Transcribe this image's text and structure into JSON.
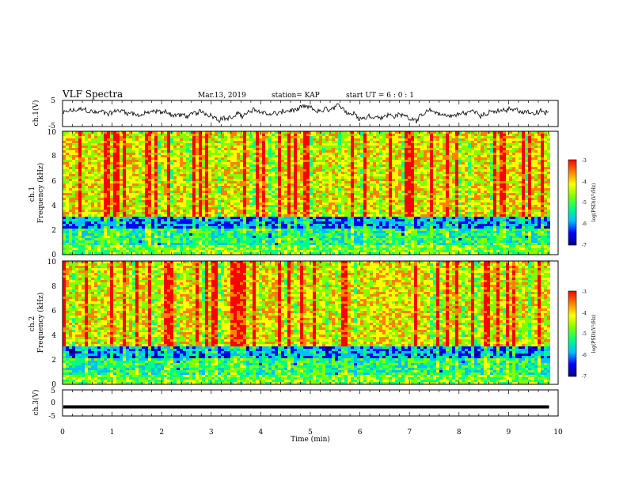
{
  "header": {
    "title": "VLF Spectra",
    "date": "Mar.13, 2019",
    "station": "station= KAP",
    "start_ut": "start  UT =   6 : 0  : 1"
  },
  "chart_data": [
    {
      "id": "ch1_waveform",
      "type": "line",
      "ylabel": "ch.1(V)",
      "ylim": [
        -5,
        5
      ],
      "yticks": [
        "5",
        "-5"
      ],
      "xlim": [
        0,
        10
      ],
      "grid": false,
      "series": [
        {
          "color": "#000000"
        }
      ]
    },
    {
      "id": "ch1_spectrogram",
      "type": "heatmap",
      "ylabel": "ch.1\nFrequency (kHz)",
      "ylim": [
        0,
        10
      ],
      "yticks": [
        "0",
        "2",
        "4",
        "6",
        "8",
        "10"
      ],
      "xlim": [
        0,
        10
      ],
      "colorbar": {
        "label": "log(PSD)(V²/Hz)",
        "range": [
          -7,
          -3
        ],
        "ticks": [
          "-3",
          "-4",
          "-5",
          "-6",
          "-7"
        ]
      }
    },
    {
      "id": "ch2_spectrogram",
      "type": "heatmap",
      "ylabel": "ch.2\nFrequency (kHz)",
      "ylim": [
        0,
        10
      ],
      "yticks": [
        "0",
        "2",
        "4",
        "6",
        "8",
        "10"
      ],
      "xlim": [
        0,
        10
      ],
      "colorbar": {
        "label": "log(PSD)(V²/Hz)",
        "range": [
          -7,
          -3
        ],
        "ticks": [
          "-3",
          "-4",
          "-5",
          "-6",
          "-7"
        ]
      }
    },
    {
      "id": "ch3_waveform",
      "type": "line",
      "ylabel": "ch.3(V)",
      "ylim": [
        -5,
        5
      ],
      "yticks": [
        "5",
        "0",
        "-5"
      ],
      "xlim": [
        0,
        10
      ],
      "xlabel": "Time (min)",
      "xticks": [
        "0",
        "1",
        "2",
        "3",
        "4",
        "5",
        "6",
        "7",
        "8",
        "9",
        "10"
      ],
      "series": [
        {
          "color": "#000000",
          "value": -1.5,
          "x_end": 9.8
        }
      ]
    }
  ],
  "colors": {
    "colormap": [
      "#000080",
      "#0000ff",
      "#00c0ff",
      "#00ff80",
      "#80ff00",
      "#ffff00",
      "#ff8000",
      "#ff0000"
    ]
  }
}
